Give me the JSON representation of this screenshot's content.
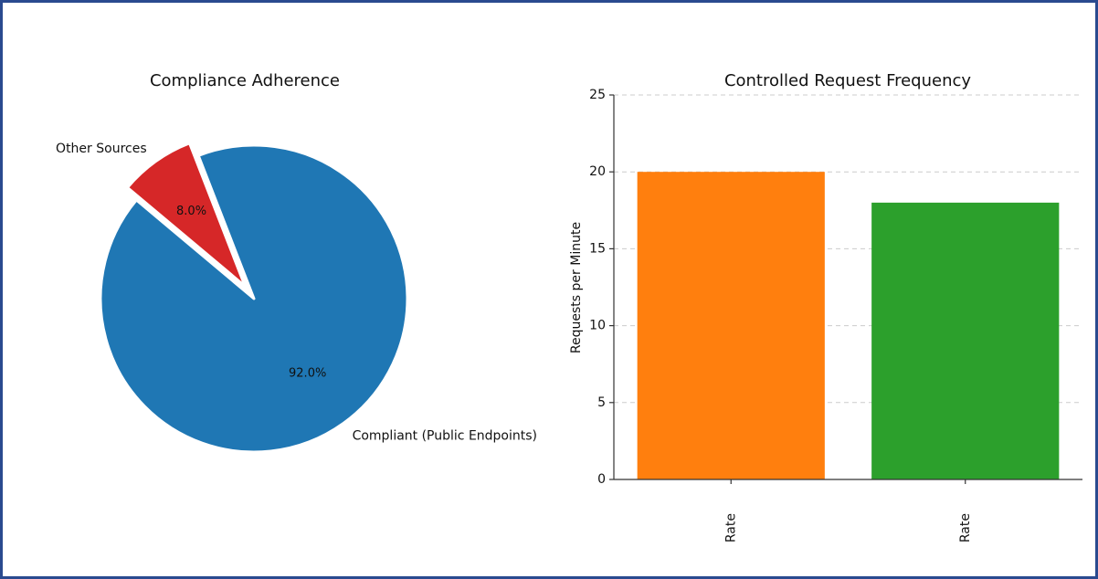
{
  "chart_data": [
    {
      "type": "pie",
      "title": "Compliance Adherence",
      "labels": [
        "Compliant (Public Endpoints)",
        "Other Sources"
      ],
      "values": [
        92.0,
        8.0
      ],
      "value_labels": [
        "92.0%",
        "8.0%"
      ],
      "colors": [
        "#1f77b4",
        "#d62728"
      ],
      "explode": [
        0,
        0.1
      ],
      "startangle": 140
    },
    {
      "type": "bar",
      "title": "Controlled Request Frequency",
      "ylabel": "Requests per Minute",
      "categories": [
        "Rate",
        "Rate"
      ],
      "values": [
        20,
        18
      ],
      "colors": [
        "#ff7f0e",
        "#2ca02c"
      ],
      "ylim": [
        0,
        25
      ],
      "yticks": [
        0,
        5,
        10,
        15,
        20,
        25
      ],
      "grid": true
    }
  ]
}
